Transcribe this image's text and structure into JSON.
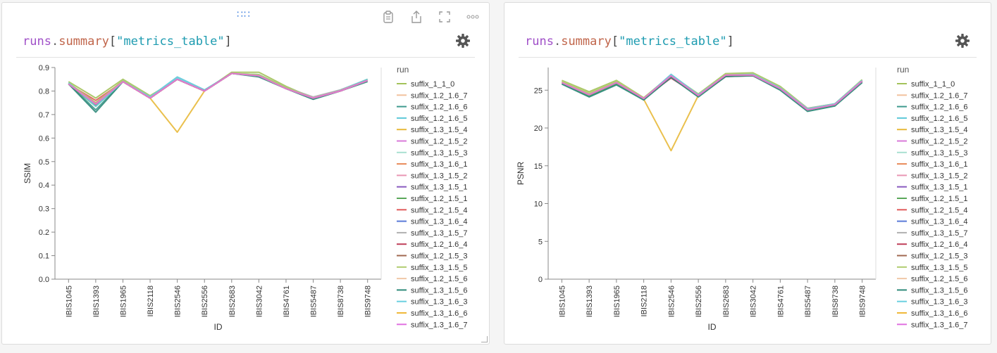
{
  "panels": [
    {
      "expr": {
        "obj": "runs",
        "dot": ".",
        "attr": "summary",
        "open": "[",
        "key": "\"metrics_table\"",
        "close": "]"
      },
      "chart_data": {
        "type": "line",
        "xlabel": "ID",
        "ylabel": "SSIM",
        "legend_title": "run",
        "legend_position": "right",
        "grid": false,
        "ylim": [
          0,
          0.9
        ],
        "yticks": [
          "0.0",
          "0.1",
          "0.2",
          "0.3",
          "0.4",
          "0.5",
          "0.6",
          "0.7",
          "0.8",
          "0.9"
        ],
        "categories": [
          "IBIS1045",
          "IBIS1393",
          "IBIS1965",
          "IBIS2118",
          "IBIS2546",
          "IBIS2556",
          "IBIS2683",
          "IBIS3042",
          "IBIS4761",
          "IBIS5487",
          "IBIS8738",
          "IBIS9748"
        ],
        "series": [
          {
            "name": "suffix_1_1_0",
            "color": "#a3c25a",
            "values": [
              0.84,
              0.77,
              0.85,
              0.78,
              0.85,
              0.8,
              0.88,
              0.88,
              0.82,
              0.77,
              0.8,
              0.85
            ]
          },
          {
            "name": "suffix_1.2_1.6_7",
            "color": "#f2c29e",
            "values": [
              0.83,
              0.75,
              0.845,
              0.775,
              0.85,
              0.8,
              0.875,
              0.87,
              0.815,
              0.77,
              0.8,
              0.845
            ]
          },
          {
            "name": "suffix_1.2_1.6_6",
            "color": "#3f9a8e",
            "values": [
              0.83,
              0.72,
              0.84,
              0.77,
              0.85,
              0.8,
              0.875,
              0.865,
              0.81,
              0.765,
              0.8,
              0.845
            ]
          },
          {
            "name": "suffix_1.2_1.6_5",
            "color": "#5ec8d8",
            "values": [
              0.835,
              0.74,
              0.845,
              0.775,
              0.86,
              0.805,
              0.875,
              0.87,
              0.815,
              0.77,
              0.805,
              0.85
            ]
          },
          {
            "name": "suffix_1.3_1.5_4",
            "color": "#e8b93a",
            "values": [
              0.83,
              0.745,
              0.84,
              0.77,
              0.625,
              0.8,
              0.875,
              0.865,
              0.81,
              0.77,
              0.8,
              0.845
            ]
          },
          {
            "name": "suffix_1.2_1.5_2",
            "color": "#d87ad8",
            "values": [
              0.83,
              0.745,
              0.84,
              0.77,
              0.85,
              0.8,
              0.875,
              0.865,
              0.81,
              0.77,
              0.8,
              0.845
            ]
          },
          {
            "name": "suffix_1.3_1.5_3",
            "color": "#a8e0d0",
            "values": [
              0.83,
              0.74,
              0.84,
              0.77,
              0.85,
              0.8,
              0.875,
              0.865,
              0.81,
              0.77,
              0.8,
              0.845
            ]
          },
          {
            "name": "suffix_1.3_1.6_1",
            "color": "#e88a5a",
            "values": [
              0.83,
              0.745,
              0.84,
              0.77,
              0.85,
              0.8,
              0.875,
              0.865,
              0.81,
              0.77,
              0.8,
              0.845
            ]
          },
          {
            "name": "suffix_1.3_1.5_2",
            "color": "#e896b4",
            "values": [
              0.83,
              0.745,
              0.84,
              0.77,
              0.85,
              0.8,
              0.875,
              0.865,
              0.81,
              0.77,
              0.8,
              0.845
            ]
          },
          {
            "name": "suffix_1.3_1.5_1",
            "color": "#8a5cc0",
            "values": [
              0.83,
              0.74,
              0.84,
              0.77,
              0.85,
              0.8,
              0.875,
              0.865,
              0.81,
              0.77,
              0.8,
              0.845
            ]
          },
          {
            "name": "suffix_1.2_1.5_1",
            "color": "#5aa85a",
            "values": [
              0.83,
              0.735,
              0.84,
              0.77,
              0.85,
              0.8,
              0.875,
              0.865,
              0.81,
              0.77,
              0.8,
              0.845
            ]
          },
          {
            "name": "suffix_1.2_1.5_4",
            "color": "#e05a5a",
            "values": [
              0.83,
              0.76,
              0.84,
              0.77,
              0.85,
              0.8,
              0.875,
              0.865,
              0.81,
              0.77,
              0.8,
              0.845
            ]
          },
          {
            "name": "suffix_1.3_1.6_4",
            "color": "#5a7ad8",
            "values": [
              0.83,
              0.74,
              0.84,
              0.77,
              0.85,
              0.8,
              0.875,
              0.865,
              0.81,
              0.77,
              0.8,
              0.845
            ]
          },
          {
            "name": "suffix_1.3_1.5_7",
            "color": "#b0b0b0",
            "values": [
              0.83,
              0.745,
              0.84,
              0.77,
              0.85,
              0.8,
              0.875,
              0.865,
              0.815,
              0.775,
              0.805,
              0.845
            ]
          },
          {
            "name": "suffix_1.2_1.6_4",
            "color": "#c0405a",
            "values": [
              0.83,
              0.75,
              0.84,
              0.77,
              0.85,
              0.8,
              0.875,
              0.865,
              0.81,
              0.77,
              0.8,
              0.845
            ]
          },
          {
            "name": "suffix_1.2_1.5_3",
            "color": "#a06850",
            "values": [
              0.83,
              0.74,
              0.84,
              0.77,
              0.85,
              0.8,
              0.875,
              0.865,
              0.81,
              0.77,
              0.8,
              0.845
            ]
          },
          {
            "name": "suffix_1.3_1.5_5",
            "color": "#b0cc70",
            "values": [
              0.835,
              0.75,
              0.845,
              0.775,
              0.85,
              0.8,
              0.875,
              0.87,
              0.815,
              0.77,
              0.8,
              0.845
            ]
          },
          {
            "name": "suffix_1.2_1.5_6",
            "color": "#f0c8a8",
            "values": [
              0.83,
              0.745,
              0.84,
              0.77,
              0.85,
              0.8,
              0.875,
              0.865,
              0.81,
              0.77,
              0.8,
              0.845
            ]
          },
          {
            "name": "suffix_1.3_1.5_6",
            "color": "#2f8a7a",
            "values": [
              0.83,
              0.71,
              0.84,
              0.77,
              0.85,
              0.8,
              0.875,
              0.86,
              0.81,
              0.765,
              0.8,
              0.84
            ]
          },
          {
            "name": "suffix_1.3_1.6_3",
            "color": "#6ad0e0",
            "values": [
              0.835,
              0.735,
              0.84,
              0.775,
              0.855,
              0.8,
              0.875,
              0.865,
              0.81,
              0.77,
              0.8,
              0.845
            ]
          },
          {
            "name": "suffix_1.3_1.6_6",
            "color": "#f0b83a",
            "values": [
              0.83,
              0.745,
              0.84,
              0.77,
              0.85,
              0.8,
              0.875,
              0.865,
              0.81,
              0.77,
              0.8,
              0.845
            ]
          },
          {
            "name": "suffix_1.3_1.6_7",
            "color": "#e070e0",
            "values": [
              0.83,
              0.745,
              0.84,
              0.77,
              0.85,
              0.8,
              0.875,
              0.865,
              0.81,
              0.77,
              0.8,
              0.845
            ]
          }
        ]
      }
    },
    {
      "expr": {
        "obj": "runs",
        "dot": ".",
        "attr": "summary",
        "open": "[",
        "key": "\"metrics_table\"",
        "close": "]"
      },
      "chart_data": {
        "type": "line",
        "xlabel": "ID",
        "ylabel": "PSNR",
        "legend_title": "run",
        "legend_position": "right",
        "grid": false,
        "ylim": [
          0,
          28
        ],
        "yticks": [
          "0",
          "5",
          "10",
          "15",
          "20",
          "25"
        ],
        "ytick_values": [
          0,
          5,
          10,
          15,
          20,
          25
        ],
        "categories": [
          "IBIS1045",
          "IBIS1393",
          "IBIS1965",
          "IBIS2118",
          "IBIS2546",
          "IBIS2556",
          "IBIS2683",
          "IBIS3042",
          "IBIS4761",
          "IBIS5487",
          "IBIS8738",
          "IBIS9748"
        ],
        "series": [
          {
            "name": "suffix_1_1_0",
            "color": "#a3c25a",
            "values": [
              26.3,
              24.8,
              26.3,
              24.0,
              27.0,
              24.5,
              27.2,
              27.3,
              25.5,
              22.6,
              23.2,
              26.4
            ]
          },
          {
            "name": "suffix_1.2_1.6_7",
            "color": "#f2c29e",
            "values": [
              26.1,
              24.5,
              26.1,
              23.9,
              26.9,
              24.4,
              27.0,
              27.1,
              25.3,
              22.5,
              23.1,
              26.3
            ]
          },
          {
            "name": "suffix_1.2_1.6_6",
            "color": "#3f9a8e",
            "values": [
              25.9,
              24.2,
              25.8,
              23.8,
              26.8,
              24.2,
              26.9,
              27.0,
              25.1,
              22.3,
              23.0,
              26.1
            ]
          },
          {
            "name": "suffix_1.2_1.6_5",
            "color": "#5ec8d8",
            "values": [
              26.0,
              24.4,
              26.0,
              23.9,
              27.1,
              24.4,
              27.0,
              27.1,
              25.3,
              22.5,
              23.2,
              26.3
            ]
          },
          {
            "name": "suffix_1.3_1.5_4",
            "color": "#e8b93a",
            "values": [
              26.0,
              24.4,
              26.0,
              23.8,
              17.0,
              24.3,
              27.0,
              27.0,
              25.2,
              22.4,
              23.1,
              26.2
            ]
          },
          {
            "name": "suffix_1.2_1.5_2",
            "color": "#d87ad8",
            "values": [
              26.0,
              24.4,
              26.0,
              23.9,
              26.9,
              24.3,
              27.0,
              27.0,
              25.2,
              22.4,
              23.1,
              26.2
            ]
          },
          {
            "name": "suffix_1.3_1.5_3",
            "color": "#a8e0d0",
            "values": [
              26.0,
              24.4,
              26.0,
              23.9,
              26.9,
              24.3,
              27.0,
              27.0,
              25.2,
              22.4,
              23.1,
              26.2
            ]
          },
          {
            "name": "suffix_1.3_1.6_1",
            "color": "#e88a5a",
            "values": [
              26.0,
              24.4,
              26.0,
              23.9,
              26.9,
              24.3,
              27.0,
              27.0,
              25.2,
              22.4,
              23.1,
              26.2
            ]
          },
          {
            "name": "suffix_1.3_1.5_2",
            "color": "#e896b4",
            "values": [
              26.0,
              24.4,
              26.0,
              23.9,
              26.9,
              24.3,
              27.0,
              27.0,
              25.2,
              22.4,
              23.1,
              26.2
            ]
          },
          {
            "name": "suffix_1.3_1.5_1",
            "color": "#8a5cc0",
            "values": [
              26.0,
              24.4,
              26.0,
              23.9,
              26.9,
              24.3,
              27.0,
              27.0,
              25.2,
              22.4,
              23.1,
              26.2
            ]
          },
          {
            "name": "suffix_1.2_1.5_1",
            "color": "#5aa85a",
            "values": [
              26.0,
              24.3,
              25.9,
              23.8,
              26.8,
              24.3,
              26.9,
              27.0,
              25.2,
              22.4,
              23.1,
              26.2
            ]
          },
          {
            "name": "suffix_1.2_1.5_4",
            "color": "#e05a5a",
            "values": [
              26.0,
              24.4,
              26.0,
              23.9,
              26.7,
              24.3,
              26.9,
              27.0,
              25.2,
              22.4,
              23.1,
              26.2
            ]
          },
          {
            "name": "suffix_1.3_1.6_4",
            "color": "#5a7ad8",
            "values": [
              26.0,
              24.4,
              26.0,
              23.9,
              26.9,
              24.3,
              27.0,
              27.0,
              25.2,
              22.4,
              23.1,
              26.2
            ]
          },
          {
            "name": "suffix_1.3_1.5_7",
            "color": "#b0b0b0",
            "values": [
              26.0,
              24.4,
              26.0,
              23.9,
              26.9,
              24.4,
              27.0,
              27.0,
              25.3,
              22.6,
              23.2,
              26.2
            ]
          },
          {
            "name": "suffix_1.2_1.6_4",
            "color": "#c0405a",
            "values": [
              26.0,
              24.4,
              26.0,
              23.9,
              26.6,
              24.3,
              26.8,
              26.9,
              25.2,
              22.4,
              23.1,
              26.2
            ]
          },
          {
            "name": "suffix_1.2_1.5_3",
            "color": "#a06850",
            "values": [
              26.0,
              24.4,
              26.0,
              23.9,
              26.9,
              24.3,
              27.0,
              27.0,
              25.2,
              22.4,
              23.1,
              26.2
            ]
          },
          {
            "name": "suffix_1.3_1.5_5",
            "color": "#b0cc70",
            "values": [
              26.2,
              24.6,
              26.2,
              24.0,
              26.9,
              24.4,
              27.1,
              27.2,
              25.4,
              22.5,
              23.2,
              26.3
            ]
          },
          {
            "name": "suffix_1.2_1.5_6",
            "color": "#f0c8a8",
            "values": [
              26.0,
              24.4,
              26.0,
              23.9,
              26.9,
              24.3,
              27.0,
              27.0,
              25.2,
              22.4,
              23.1,
              26.2
            ]
          },
          {
            "name": "suffix_1.3_1.5_6",
            "color": "#2f8a7a",
            "values": [
              25.8,
              24.1,
              25.7,
              23.7,
              26.7,
              24.1,
              26.8,
              26.9,
              25.0,
              22.2,
              22.9,
              26.0
            ]
          },
          {
            "name": "suffix_1.3_1.6_3",
            "color": "#6ad0e0",
            "values": [
              26.0,
              24.4,
              26.0,
              23.9,
              27.0,
              24.4,
              27.0,
              27.1,
              25.3,
              22.5,
              23.2,
              26.3
            ]
          },
          {
            "name": "suffix_1.3_1.6_6",
            "color": "#f0b83a",
            "values": [
              26.0,
              24.4,
              26.0,
              23.9,
              26.9,
              24.3,
              27.0,
              27.0,
              25.2,
              22.4,
              23.1,
              26.2
            ]
          },
          {
            "name": "suffix_1.3_1.6_7",
            "color": "#e070e0",
            "values": [
              26.0,
              24.4,
              26.0,
              23.9,
              26.9,
              24.3,
              27.0,
              27.0,
              25.2,
              22.4,
              23.1,
              26.2
            ]
          }
        ]
      }
    }
  ]
}
